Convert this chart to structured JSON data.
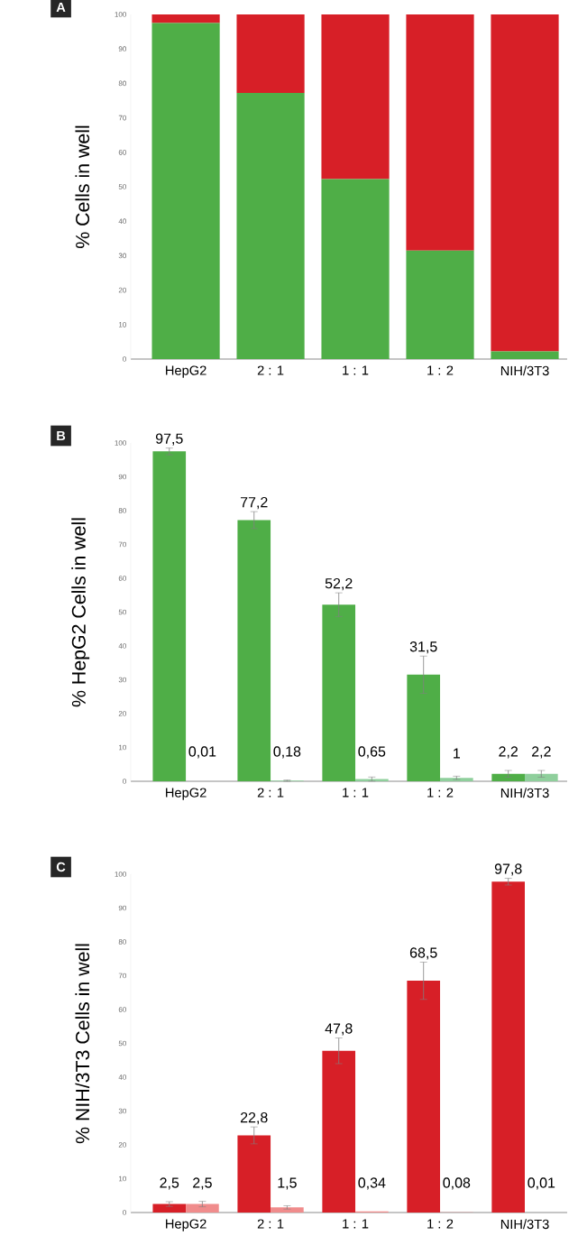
{
  "chart_data": [
    {
      "type": "bar",
      "title": "A",
      "ylabel": "% Cells in well",
      "categories": [
        "HepG2",
        "2 : 1",
        "1 : 1",
        "1 : 2",
        "NIH/3T3"
      ],
      "stacked": true,
      "ylim": [
        0,
        100
      ],
      "yticks": [
        0,
        10,
        20,
        30,
        40,
        50,
        60,
        70,
        80,
        90,
        100
      ],
      "series": [
        {
          "color": "#4fae47",
          "values": [
            97.5,
            77.2,
            52.2,
            31.5,
            2.2
          ]
        },
        {
          "color": "#d71f27",
          "values": [
            2.5,
            22.8,
            47.8,
            68.5,
            97.8
          ]
        }
      ]
    },
    {
      "type": "bar",
      "title": "B",
      "ylabel": "% HepG2 Cells in well",
      "categories": [
        "HepG2",
        "2 : 1",
        "1 : 1",
        "1 : 2",
        "NIH/3T3"
      ],
      "ylim": [
        0,
        100
      ],
      "yticks": [
        0,
        10,
        20,
        30,
        40,
        50,
        60,
        70,
        80,
        90,
        100
      ],
      "series": [
        {
          "color": "#4fae47",
          "values": [
            97.5,
            77.2,
            52.2,
            31.5,
            2.2
          ],
          "errors": [
            1,
            2.5,
            3.5,
            5.5,
            1
          ],
          "value_labels": [
            "97,5",
            "77,2",
            "52,2",
            "31,5",
            "2,2"
          ]
        },
        {
          "color": "#8fcf9c",
          "values": [
            0.01,
            0.18,
            0.65,
            1,
            2.2
          ],
          "errors": [
            null,
            0.2,
            0.6,
            0.5,
            1
          ],
          "value_labels": [
            "0,01",
            "0,18",
            "0,65",
            "1",
            "2,2"
          ]
        }
      ]
    },
    {
      "type": "bar",
      "title": "C",
      "ylabel": "% NIH/3T3 Cells in well",
      "categories": [
        "HepG2",
        "2 : 1",
        "1 : 1",
        "1 : 2",
        "NIH/3T3"
      ],
      "ylim": [
        0,
        100
      ],
      "yticks": [
        0,
        10,
        20,
        30,
        40,
        50,
        60,
        70,
        80,
        90,
        100
      ],
      "series": [
        {
          "color": "#d71f27",
          "values": [
            2.5,
            22.8,
            47.8,
            68.5,
            97.8
          ],
          "errors": [
            0.7,
            2.5,
            3.8,
            5.5,
            1
          ],
          "value_labels": [
            "2,5",
            "22,8",
            "47,8",
            "68,5",
            "97,8"
          ]
        },
        {
          "color": "#f08c8c",
          "values": [
            2.5,
            1.5,
            0.34,
            0.08,
            0.01
          ],
          "errors": [
            0.8,
            0.5,
            null,
            null,
            null
          ],
          "value_labels": [
            "2,5",
            "1,5",
            "0,34",
            "0,08",
            "0,01"
          ]
        }
      ]
    }
  ]
}
